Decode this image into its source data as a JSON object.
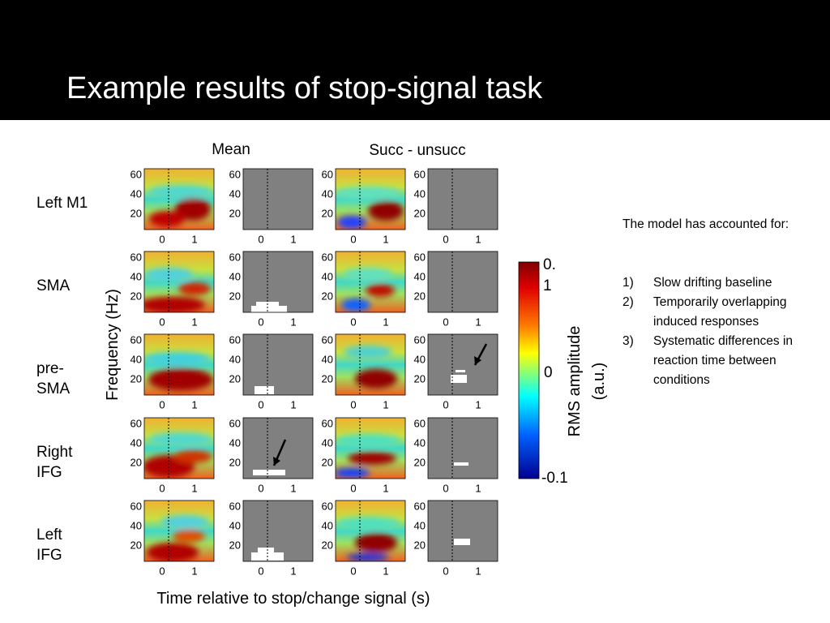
{
  "header": {
    "title": "Example results of stop-signal task"
  },
  "figure": {
    "column_titles": [
      "Mean",
      "Succ - unsucc"
    ],
    "rows": [
      "Left M1",
      "SMA",
      "pre-SMA",
      "Right IFG",
      "Left IFG"
    ],
    "yticks": [
      "60",
      "40",
      "20"
    ],
    "xticks": [
      "0",
      "1"
    ],
    "y_label": "Frequency (Hz)",
    "x_label": "Time relative to stop/change signal (s)",
    "colorbar": {
      "label": "RMS amplitude (a.u.)",
      "ticks": [
        "0.1",
        "0",
        "-0.1"
      ]
    }
  },
  "notes": {
    "intro": "The model has accounted for:",
    "items": [
      {
        "marker": "1)",
        "text": "Slow drifting baseline"
      },
      {
        "marker": "2)",
        "text": "Temporarily overlapping induced responses"
      },
      {
        "marker": "3)",
        "text": "Systematic differences in reaction time between conditions"
      }
    ]
  }
}
